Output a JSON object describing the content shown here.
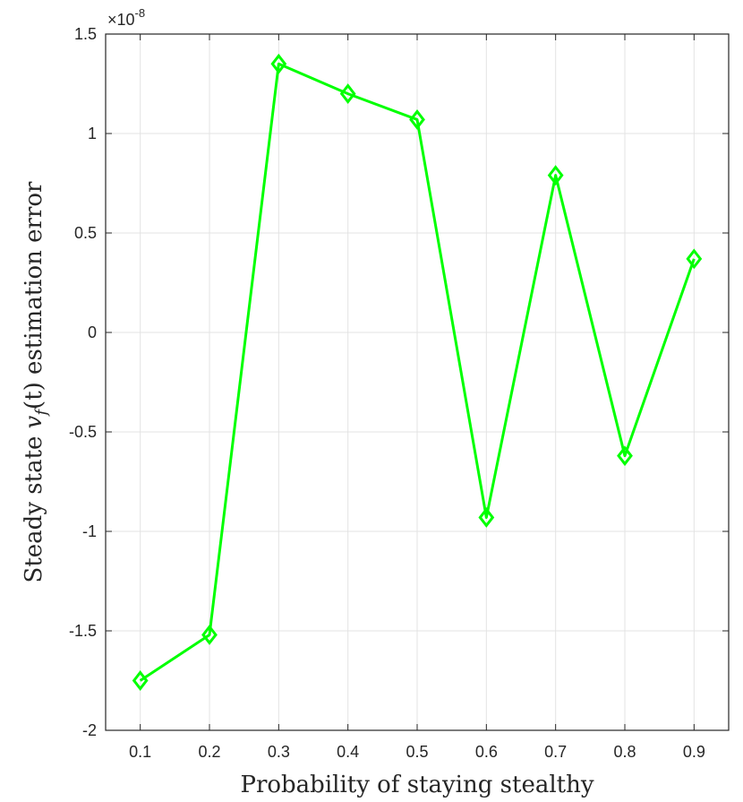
{
  "chart_data": {
    "type": "line",
    "xlabel": "Probability of staying stealthy",
    "ylabel_prefix": "Steady state ",
    "ylabel_var": "v",
    "ylabel_sub": "f",
    "ylabel_arg": "(t)",
    "ylabel_suffix": " estimation error",
    "y_exponent_base": "×10",
    "y_exponent_power": "-8",
    "x": [
      0.1,
      0.2,
      0.3,
      0.4,
      0.5,
      0.6,
      0.7,
      0.8,
      0.9
    ],
    "x_tick_labels": [
      "0.1",
      "0.2",
      "0.3",
      "0.4",
      "0.5",
      "0.6",
      "0.7",
      "0.8",
      "0.9"
    ],
    "xlim": [
      0.05,
      0.95
    ],
    "y_ticks": [
      -2,
      -1.5,
      -1,
      -0.5,
      0,
      0.5,
      1,
      1.5
    ],
    "y_tick_labels": [
      "-2",
      "-1.5",
      "-1",
      "-0.5",
      "0",
      "0.5",
      "1",
      "1.5"
    ],
    "ylim": [
      -2,
      1.5
    ],
    "series": [
      {
        "values": [
          -1.75,
          -1.52,
          1.35,
          1.2,
          1.07,
          -0.93,
          0.79,
          -0.62,
          0.37
        ],
        "color": "#00ff00",
        "marker": "diamond"
      }
    ],
    "grid": true
  }
}
